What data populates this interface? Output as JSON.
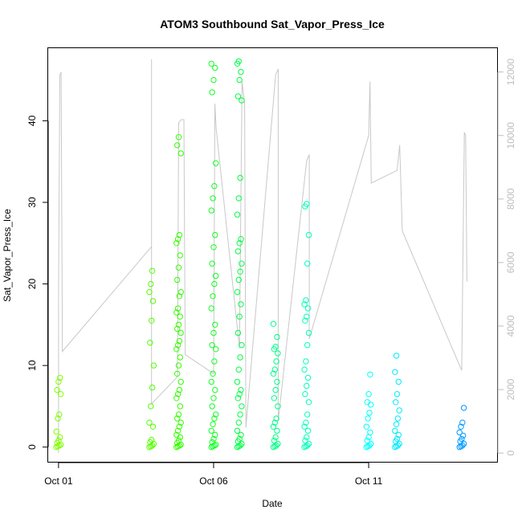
{
  "chart_data": {
    "type": "scatter",
    "title": "ATOM3 Southbound Sat_Vapor_Press_Ice",
    "xlabel": "Date",
    "ylabel": "Sat_Vapor_Press_Ice",
    "x_ticks": [
      "Oct 01",
      "Oct 06",
      "Oct 11"
    ],
    "y_ticks": [
      "0",
      "10",
      "20",
      "30",
      "40"
    ],
    "y2_ticks": [
      "0",
      "2000",
      "4000",
      "6000",
      "8000",
      "10000",
      "12000"
    ],
    "xlim": [
      "2016-09-30T16:00",
      "2016-10-15T04:00"
    ],
    "ylim": [
      -1.9,
      48.9
    ],
    "y2lim": [
      -300,
      12750
    ],
    "right_axis_color": "#bdbdbd",
    "line_color": "#c8c8c8",
    "series": [
      {
        "x": "2016-10-01T00:00",
        "color": "#80ff00",
        "values": [
          0,
          0.1,
          0.2,
          0.3,
          0.5,
          0.8,
          1.2,
          1.9,
          3.5,
          4.0,
          6.5,
          7.0,
          8.0,
          8.5
        ]
      },
      {
        "x": "2016-10-04T00:00",
        "color": "#55ff00",
        "values": [
          0,
          0.1,
          0.2,
          0.4,
          0.6,
          0.9,
          2.5,
          3.0,
          5.0,
          7.3,
          10.0,
          12.8,
          15.5,
          17.9,
          19.0,
          20.0,
          21.6
        ]
      },
      {
        "x": "2016-10-04T21:00",
        "color": "#33ff00",
        "values": [
          0,
          0.1,
          0.2,
          0.3,
          0.5,
          0.8,
          1.2,
          1.5,
          2.0,
          2.5,
          3.0,
          3.5,
          4.0,
          5.0,
          6.0,
          6.5,
          7.0,
          8.0,
          9.0,
          10.0,
          11.0,
          12.0,
          12.5,
          13.0,
          14.0,
          14.5,
          15.0,
          16.0,
          16.5,
          17.0,
          18.5,
          19.0,
          20.5,
          22.0,
          23.5,
          25.0,
          25.5,
          26.0,
          36.0,
          37.0,
          38.0
        ]
      },
      {
        "x": "2016-10-06T00:00",
        "color": "#11ff22",
        "values": [
          0,
          0.1,
          0.2,
          0.3,
          0.6,
          1.0,
          1.5,
          2.0,
          2.8,
          3.5,
          4.0,
          5.0,
          6.0,
          7.0,
          8.0,
          9.0,
          10.5,
          12.0,
          12.5,
          14.0,
          15.0,
          17.0,
          18.5,
          20.0,
          21.0,
          22.5,
          24.5,
          26.0,
          29.0,
          30.5,
          32.0,
          34.8,
          43.5,
          45.0,
          46.5,
          47.0
        ]
      },
      {
        "x": "2016-10-06T20:00",
        "color": "#00ff44",
        "values": [
          0,
          0.1,
          0.2,
          0.4,
          0.7,
          1.0,
          1.5,
          2.0,
          3.0,
          4.0,
          5.0,
          6.0,
          6.5,
          7.0,
          8.0,
          9.5,
          11.0,
          12.5,
          14.0,
          16.0,
          17.5,
          19.0,
          20.5,
          21.5,
          22.5,
          24.0,
          25.0,
          25.5,
          28.5,
          30.5,
          33.0,
          42.5,
          43.0,
          45.0,
          46.0,
          47.0,
          47.3
        ]
      },
      {
        "x": "2016-10-08T00:00",
        "color": "#00ff88",
        "values": [
          0,
          0.1,
          0.2,
          0.4,
          0.8,
          1.2,
          2.0,
          2.5,
          3.0,
          3.5,
          5.0,
          6.0,
          7.0,
          8.0,
          9.0,
          9.5,
          10.5,
          11.5,
          12.0,
          12.3,
          13.5,
          15.1
        ]
      },
      {
        "x": "2016-10-09T00:00",
        "color": "#00ffbb",
        "values": [
          0,
          0.1,
          0.2,
          0.4,
          0.8,
          1.2,
          2.0,
          2.5,
          3.0,
          4.0,
          5.5,
          6.5,
          7.5,
          8.5,
          9.5,
          10.5,
          12.5,
          14.0,
          15.5,
          16.0,
          17.0,
          17.5,
          18.0,
          22.5,
          26.0,
          29.5,
          29.8
        ]
      },
      {
        "x": "2016-10-11T00:00",
        "color": "#00ffff",
        "values": [
          0,
          0.1,
          0.2,
          0.4,
          0.8,
          1.2,
          1.8,
          2.5,
          3.5,
          4.2,
          5.2,
          5.5,
          6.5,
          8.9
        ]
      },
      {
        "x": "2016-10-11T22:00",
        "color": "#00eaff",
        "values": [
          0,
          0.1,
          0.2,
          0.4,
          0.7,
          1.0,
          1.5,
          2.0,
          2.8,
          3.5,
          4.5,
          5.5,
          6.5,
          8.0,
          9.2,
          11.2
        ]
      },
      {
        "x": "2016-10-14T00:00",
        "color": "#0099ff",
        "values": [
          0,
          0.1,
          0.2,
          0.4,
          0.7,
          1.0,
          1.4,
          1.8,
          2.5,
          3.0,
          4.8
        ]
      }
    ],
    "secondary_line": [
      [
        "2016-10-01T00:00",
        0
      ],
      [
        "2016-10-01T00:00",
        5000
      ],
      [
        "2016-10-01T01:00",
        11900
      ],
      [
        "2016-10-01T02:00",
        12000
      ],
      [
        "2016-10-01T03:00",
        3200
      ],
      [
        "2016-10-04T00:00",
        6500
      ],
      [
        "2016-10-04T00:00",
        12400
      ],
      [
        "2016-10-04T00:00",
        1550
      ],
      [
        "2016-10-04T20:00",
        2400
      ],
      [
        "2016-10-04T21:00",
        10400
      ],
      [
        "2016-10-04T23:00",
        10500
      ],
      [
        "2016-10-05T01:00",
        10500
      ],
      [
        "2016-10-05T02:00",
        3100
      ],
      [
        "2016-10-06T00:00",
        2500
      ],
      [
        "2016-10-06T01:00",
        11000
      ],
      [
        "2016-10-06T02:00",
        10200
      ],
      [
        "2016-10-06T20:00",
        3300
      ],
      [
        "2016-10-06T22:00",
        11700
      ],
      [
        "2016-10-07T00:00",
        11000
      ],
      [
        "2016-10-07T01:00",
        800
      ],
      [
        "2016-10-08T00:00",
        11900
      ],
      [
        "2016-10-08T02:00",
        12100
      ],
      [
        "2016-10-08T02:00",
        1000
      ],
      [
        "2016-10-09T00:00",
        9200
      ],
      [
        "2016-10-09T02:00",
        9400
      ],
      [
        "2016-10-09T02:00",
        3600
      ],
      [
        "2016-10-11T00:00",
        10000
      ],
      [
        "2016-10-11T01:00",
        11700
      ],
      [
        "2016-10-11T02:00",
        8500
      ],
      [
        "2016-10-11T22:00",
        8900
      ],
      [
        "2016-10-12T00:00",
        9700
      ],
      [
        "2016-10-12T02:00",
        7000
      ],
      [
        "2016-10-14T00:00",
        2600
      ],
      [
        "2016-10-14T02:00",
        10100
      ],
      [
        "2016-10-14T03:00",
        10000
      ],
      [
        "2016-10-14T04:00",
        5400
      ]
    ]
  }
}
